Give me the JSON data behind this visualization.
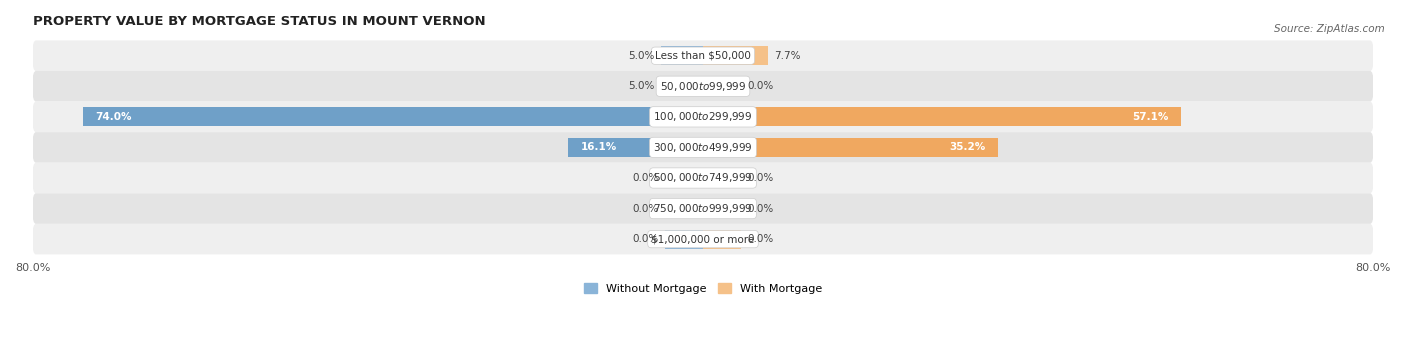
{
  "title": "PROPERTY VALUE BY MORTGAGE STATUS IN MOUNT VERNON",
  "source": "Source: ZipAtlas.com",
  "categories": [
    "Less than $50,000",
    "$50,000 to $99,999",
    "$100,000 to $299,999",
    "$300,000 to $499,999",
    "$500,000 to $749,999",
    "$750,000 to $999,999",
    "$1,000,000 or more"
  ],
  "without_mortgage": [
    5.0,
    5.0,
    74.0,
    16.1,
    0.0,
    0.0,
    0.0
  ],
  "with_mortgage": [
    7.7,
    0.0,
    57.1,
    35.2,
    0.0,
    0.0,
    0.0
  ],
  "without_mortgage_color": "#8ab4d8",
  "with_mortgage_color": "#f5c189",
  "without_mortgage_color_large": "#6fa0c8",
  "with_mortgage_color_large": "#f0a860",
  "row_bg_even": "#efefef",
  "row_bg_odd": "#e4e4e4",
  "xlim": 80.0,
  "stub_size": 4.5,
  "bar_height": 0.62,
  "title_fontsize": 9.5,
  "label_fontsize": 7.5,
  "tick_fontsize": 8,
  "source_fontsize": 7.5,
  "value_fontsize": 7.5
}
